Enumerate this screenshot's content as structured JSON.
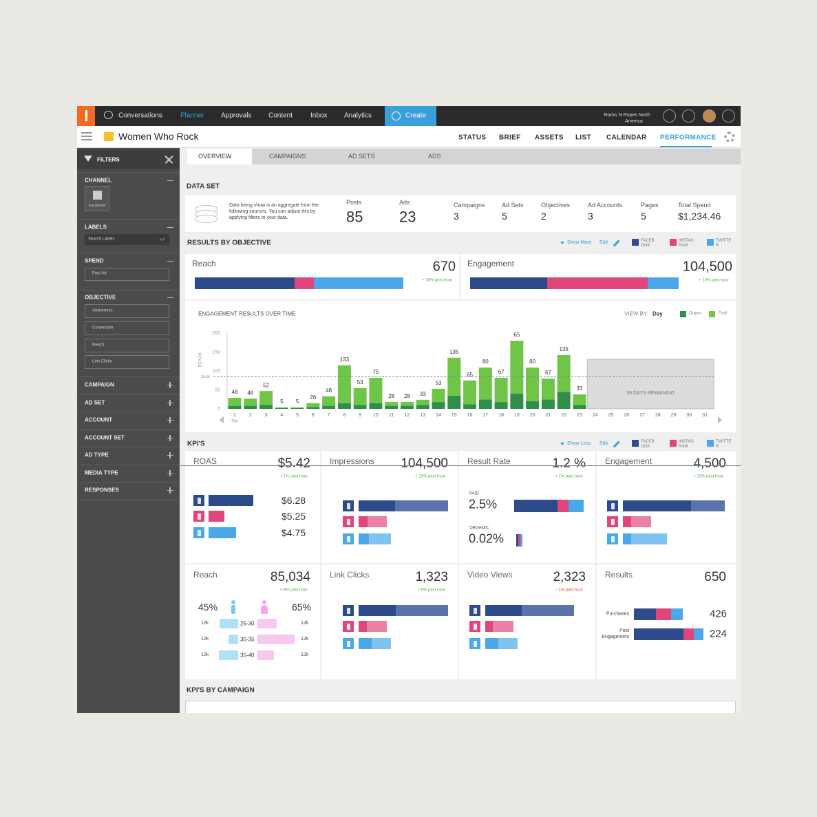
{
  "nav": {
    "items": [
      "Conversations",
      "Planner",
      "Approvals",
      "Content",
      "Inbox",
      "Analytics"
    ],
    "active": 1,
    "create": "Create",
    "account": [
      "Rocks N Ropes North",
      "America"
    ]
  },
  "header": {
    "title": "Women Who Rock",
    "tabs": [
      "STATUS",
      "BRIEF",
      "ASSETS",
      "LIST",
      "CALENDAR",
      "PERFORMANCE"
    ],
    "active": 5
  },
  "filters": {
    "title": "FILTERS",
    "channel": {
      "label": "CHANNEL",
      "option": "Facebook"
    },
    "labels": {
      "label": "LABELS",
      "placeholder": "Search Labels"
    },
    "spend": {
      "label": "SPEND",
      "option": "Paid Ad"
    },
    "objective": {
      "label": "OBJECTIVE",
      "options": [
        "Awareness",
        "Conversion",
        "Reach",
        "Link Clicks"
      ]
    },
    "more": [
      "CAMPAIGN",
      "AD SET",
      "ACCOUNT",
      "ACCOUNT SET",
      "AD TYPE",
      "MEDIA TYPE",
      "RESPONSES"
    ]
  },
  "subtabs": {
    "items": [
      "OVERVIEW",
      "CAMPAIGNS",
      "AD SETS",
      "ADS"
    ],
    "active": 0
  },
  "data_set": {
    "title": "DATA SET",
    "description": "Data being show is an aggregate from the following sources. You can adjust this by applying filters to your data.",
    "stats": [
      {
        "label": "Posts",
        "value": "85"
      },
      {
        "label": "Ads",
        "value": "23"
      },
      {
        "label": "Campaigns",
        "value": "3"
      },
      {
        "label": "Ad Sets",
        "value": "5"
      },
      {
        "label": "Objectives",
        "value": "2"
      },
      {
        "label": "Ad Accounts",
        "value": "3"
      },
      {
        "label": "Pages",
        "value": "5"
      },
      {
        "label": "Total Spend",
        "value": "$1,234.46"
      }
    ]
  },
  "results": {
    "title": "RESULTS BY OBJECTIVE",
    "show": "Show More",
    "edit": "Edit",
    "legend": [
      {
        "name": "FACEBOOK",
        "color": "#2d4a8a"
      },
      {
        "name": "INSTAGRAM",
        "color": "#e0457b"
      },
      {
        "name": "TWITTER",
        "color": "#4aa8e8"
      }
    ],
    "cards": [
      {
        "label": "Reach",
        "value": "670",
        "change": "+ 10% past hour",
        "shares": [
          48,
          9,
          43
        ]
      },
      {
        "label": "Engagement",
        "value": "104,500",
        "change": "+ 10% past hour",
        "shares": [
          37,
          48,
          15
        ]
      }
    ]
  },
  "chart_data": {
    "type": "bar",
    "stacked": true,
    "title": "ENGAGEMENT RESULTS OVER TIME",
    "view_by": {
      "label": "VIEW BY:",
      "value": "Day"
    },
    "ylabel": "REACH",
    "categories": [
      "1",
      "2",
      "3",
      "4",
      "5",
      "6",
      "7",
      "8",
      "9",
      "10",
      "11",
      "12",
      "13",
      "14",
      "15",
      "16",
      "17",
      "18",
      "19",
      "20",
      "21",
      "22",
      "23",
      "24",
      "25",
      "26",
      "27",
      "28",
      "29",
      "30",
      "31"
    ],
    "month": "Oct",
    "series": [
      {
        "name": "Organi",
        "color": "#2f8f46",
        "values": [
          8,
          8,
          10,
          2,
          2,
          5,
          8,
          15,
          10,
          15,
          8,
          8,
          10,
          18,
          35,
          12,
          25,
          18,
          40,
          20,
          25,
          45,
          10,
          null,
          null,
          null,
          null,
          null,
          null,
          null,
          null
        ]
      },
      {
        "name": "Paid",
        "color": "#6ec547",
        "values": [
          21,
          19,
          37,
          2,
          2,
          10,
          25,
          100,
          45,
          67,
          10,
          10,
          14,
          35,
          100,
          63,
          84,
          64,
          140,
          89,
          55,
          97,
          28,
          null,
          null,
          null,
          null,
          null,
          null,
          null,
          null
        ]
      }
    ],
    "annotations": [
      48,
      46,
      52,
      5,
      5,
      26,
      48,
      133,
      53,
      75,
      28,
      28,
      33,
      53,
      135,
      65,
      80,
      67,
      65,
      80,
      67,
      135,
      33,
      null,
      null,
      null,
      null,
      null,
      null,
      null,
      null
    ],
    "goal": {
      "value": 85,
      "label": "Goal"
    },
    "remaining_label": "36 DAYS REMAINING",
    "ylim": [
      0,
      200
    ],
    "yticks": [
      0,
      50,
      100,
      150,
      200
    ]
  },
  "kpis": {
    "title": "KPI'S",
    "show": "Show Less",
    "edit": "Edit",
    "row_colors": [
      [
        "#2d4a8a",
        "#5a74ab"
      ],
      [
        "#e0457b",
        "#ec7fa6"
      ],
      [
        "#4aa8e8",
        "#7fc3f0"
      ]
    ],
    "demo_colors": {
      "male": "#aee0f7",
      "female": "#f8c8ee",
      "male_icon": "#7cc7e8",
      "female_icon": "#f4a6e6"
    },
    "cards": [
      {
        "label": "ROAS",
        "value": "$5.42",
        "change": "+ 1% past hour",
        "kind": "values",
        "rows": [
          {
            "value": "$6.28",
            "segments": [
              65
            ]
          },
          {
            "value": "$5.25",
            "segments": [
              23
            ]
          },
          {
            "value": "$4.75",
            "segments": [
              40
            ]
          }
        ]
      },
      {
        "label": "Impressions",
        "value": "104,500",
        "change": "+ 10% past hour",
        "kind": "networks",
        "rows": [
          {
            "segments": [
              53,
              77
            ]
          },
          {
            "segments": [
              13,
              28
            ]
          },
          {
            "segments": [
              15,
              32
            ]
          }
        ]
      },
      {
        "label": "Result Rate",
        "value": "1.2 %",
        "change": "+ 1% past hour",
        "kind": "rate",
        "rows": [
          {
            "label": "PAID",
            "value": "2.5%",
            "segments": [
              63,
              16,
              22
            ]
          },
          {
            "label": "ORGANIC",
            "value": "0.02%",
            "segments": [
              3,
              3,
              3
            ]
          }
        ]
      },
      {
        "label": "Engagement",
        "value": "4,500",
        "change": "+ 10% past hour",
        "kind": "networks",
        "rows": [
          {
            "segments": [
              99,
              49
            ]
          },
          {
            "segments": [
              12,
              29
            ]
          },
          {
            "segments": [
              12,
              52
            ]
          }
        ]
      },
      {
        "label": "Reach",
        "value": "85,034",
        "change": "+ 8% past hour",
        "kind": "demographic",
        "male": "45%",
        "female": "65%",
        "rows": [
          {
            "age": "25-30",
            "male_count": "12k",
            "female_count": "12k",
            "male_share": 27,
            "female_share": 28
          },
          {
            "age": "30-35",
            "male_count": "12k",
            "female_count": "12k",
            "male_share": 14,
            "female_share": 54
          },
          {
            "age": "35-40",
            "male_count": "12k",
            "female_count": "12k",
            "male_share": 28,
            "female_share": 24
          }
        ]
      },
      {
        "label": "Link Clicks",
        "value": "1,323",
        "change": "+ 6% past hour",
        "kind": "networks",
        "rows": [
          {
            "segments": [
              54,
              76
            ]
          },
          {
            "segments": [
              12,
              29
            ]
          },
          {
            "segments": [
              19,
              28
            ]
          }
        ]
      },
      {
        "label": "Video Views",
        "value": "2,323",
        "change": "- 1% past hour",
        "kind": "networks",
        "rows": [
          {
            "segments": [
              53,
              76
            ]
          },
          {
            "segments": [
              11,
              30
            ]
          },
          {
            "segments": [
              19,
              28
            ]
          }
        ]
      },
      {
        "label": "Results",
        "value": "650",
        "kind": "results",
        "rows": [
          {
            "label": "Purchases",
            "value": "426",
            "segments": [
              32,
              22,
              17
            ]
          },
          {
            "label": "Post Engagement",
            "value": "224",
            "segments": [
              72,
              15,
              14
            ]
          }
        ]
      }
    ]
  },
  "kpis_by_campaign": {
    "title": "KPI'S BY CAMPAIGN"
  }
}
